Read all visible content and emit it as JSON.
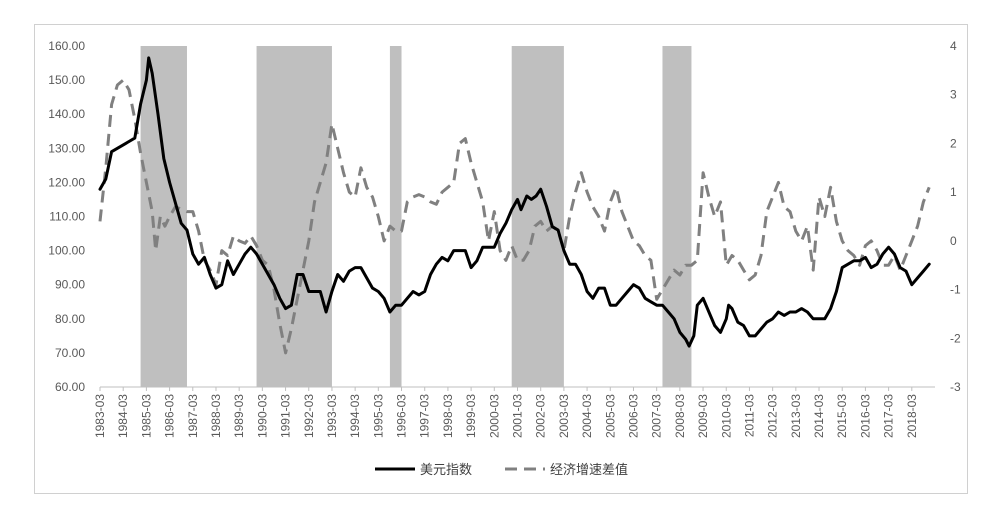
{
  "chart_data": {
    "type": "line",
    "colors": {
      "shade": "#bfbfbf",
      "usd": "#000000",
      "growth": "#808080",
      "axis_text": "#595959"
    },
    "y_left": {
      "min": 60,
      "max": 160,
      "ticks": [
        "60.00",
        "70.00",
        "80.00",
        "90.00",
        "100.00",
        "110.00",
        "120.00",
        "130.00",
        "140.00",
        "150.00",
        "160.00"
      ]
    },
    "y_right": {
      "min": -3,
      "max": 4,
      "ticks": [
        "-3",
        "-2",
        "-1",
        "0",
        "1",
        "2",
        "3",
        "4"
      ]
    },
    "x_ticks": [
      "1983-03",
      "1984-03",
      "1985-03",
      "1986-03",
      "1987-03",
      "1988-03",
      "1989-03",
      "1990-03",
      "1991-03",
      "1992-03",
      "1993-03",
      "1994-03",
      "1995-03",
      "1996-03",
      "1997-03",
      "1998-03",
      "1999-03",
      "2000-03",
      "2001-03",
      "2002-03",
      "2003-03",
      "2004-03",
      "2005-03",
      "2006-03",
      "2007-03",
      "2008-03",
      "2009-03",
      "2010-03",
      "2011-03",
      "2012-03",
      "2013-03",
      "2014-03",
      "2015-03",
      "2016-03",
      "2017-03",
      "2018-03"
    ],
    "x_range": [
      1983.0,
      2019.0
    ],
    "shaded_periods": [
      [
        1984.75,
        1986.75
      ],
      [
        1989.75,
        1993.0
      ],
      [
        1995.5,
        1996.0
      ],
      [
        2000.75,
        2003.0
      ],
      [
        2007.25,
        2008.5
      ]
    ],
    "series": [
      {
        "name": "美元指数",
        "axis": "left",
        "style": "solid",
        "points": [
          [
            1983.0,
            118
          ],
          [
            1983.25,
            121
          ],
          [
            1983.5,
            129
          ],
          [
            1983.75,
            130
          ],
          [
            1984.0,
            131
          ],
          [
            1984.25,
            132
          ],
          [
            1984.5,
            133
          ],
          [
            1984.75,
            143
          ],
          [
            1985.0,
            150
          ],
          [
            1985.1,
            156.5
          ],
          [
            1985.25,
            152
          ],
          [
            1985.5,
            140
          ],
          [
            1985.75,
            127
          ],
          [
            1986.0,
            120
          ],
          [
            1986.25,
            114
          ],
          [
            1986.5,
            108
          ],
          [
            1986.75,
            106
          ],
          [
            1987.0,
            99
          ],
          [
            1987.25,
            96
          ],
          [
            1987.5,
            98
          ],
          [
            1987.75,
            93
          ],
          [
            1988.0,
            89
          ],
          [
            1988.25,
            90
          ],
          [
            1988.5,
            97
          ],
          [
            1988.75,
            93
          ],
          [
            1989.0,
            96
          ],
          [
            1989.25,
            99
          ],
          [
            1989.5,
            101
          ],
          [
            1989.75,
            99
          ],
          [
            1990.0,
            96
          ],
          [
            1990.25,
            93
          ],
          [
            1990.5,
            90
          ],
          [
            1990.75,
            86
          ],
          [
            1991.0,
            83
          ],
          [
            1991.25,
            84
          ],
          [
            1991.5,
            93
          ],
          [
            1991.75,
            93
          ],
          [
            1992.0,
            88
          ],
          [
            1992.25,
            88
          ],
          [
            1992.5,
            88
          ],
          [
            1992.75,
            82
          ],
          [
            1993.0,
            88
          ],
          [
            1993.25,
            93
          ],
          [
            1993.5,
            91
          ],
          [
            1993.75,
            94
          ],
          [
            1994.0,
            95
          ],
          [
            1994.25,
            95
          ],
          [
            1994.5,
            92
          ],
          [
            1994.75,
            89
          ],
          [
            1995.0,
            88
          ],
          [
            1995.25,
            86
          ],
          [
            1995.5,
            82
          ],
          [
            1995.75,
            84
          ],
          [
            1996.0,
            84
          ],
          [
            1996.25,
            86
          ],
          [
            1996.5,
            88
          ],
          [
            1996.75,
            87
          ],
          [
            1997.0,
            88
          ],
          [
            1997.25,
            93
          ],
          [
            1997.5,
            96
          ],
          [
            1997.75,
            98
          ],
          [
            1998.0,
            97
          ],
          [
            1998.25,
            100
          ],
          [
            1998.5,
            100
          ],
          [
            1998.75,
            100
          ],
          [
            1999.0,
            95
          ],
          [
            1999.25,
            97
          ],
          [
            1999.5,
            101
          ],
          [
            1999.75,
            101
          ],
          [
            2000.0,
            101
          ],
          [
            2000.25,
            105
          ],
          [
            2000.5,
            108
          ],
          [
            2000.75,
            112
          ],
          [
            2001.0,
            115
          ],
          [
            2001.15,
            112
          ],
          [
            2001.4,
            116
          ],
          [
            2001.6,
            115
          ],
          [
            2001.8,
            116
          ],
          [
            2002.0,
            118
          ],
          [
            2002.25,
            113
          ],
          [
            2002.5,
            107
          ],
          [
            2002.75,
            106
          ],
          [
            2003.0,
            100
          ],
          [
            2003.25,
            96
          ],
          [
            2003.5,
            96
          ],
          [
            2003.75,
            93
          ],
          [
            2004.0,
            88
          ],
          [
            2004.25,
            86
          ],
          [
            2004.5,
            89
          ],
          [
            2004.75,
            89
          ],
          [
            2005.0,
            84
          ],
          [
            2005.25,
            84
          ],
          [
            2005.5,
            86
          ],
          [
            2005.75,
            88
          ],
          [
            2006.0,
            90
          ],
          [
            2006.25,
            89
          ],
          [
            2006.5,
            86
          ],
          [
            2006.75,
            85
          ],
          [
            2007.0,
            84
          ],
          [
            2007.25,
            84
          ],
          [
            2007.5,
            82
          ],
          [
            2007.75,
            80
          ],
          [
            2008.0,
            76
          ],
          [
            2008.25,
            74
          ],
          [
            2008.4,
            72
          ],
          [
            2008.6,
            75
          ],
          [
            2008.75,
            84
          ],
          [
            2009.0,
            86
          ],
          [
            2009.25,
            82
          ],
          [
            2009.5,
            78
          ],
          [
            2009.75,
            76
          ],
          [
            2010.0,
            80
          ],
          [
            2010.1,
            84
          ],
          [
            2010.25,
            83
          ],
          [
            2010.5,
            79
          ],
          [
            2010.75,
            78
          ],
          [
            2011.0,
            75
          ],
          [
            2011.25,
            75
          ],
          [
            2011.5,
            77
          ],
          [
            2011.75,
            79
          ],
          [
            2012.0,
            80
          ],
          [
            2012.25,
            82
          ],
          [
            2012.5,
            81
          ],
          [
            2012.75,
            82
          ],
          [
            2013.0,
            82
          ],
          [
            2013.25,
            83
          ],
          [
            2013.5,
            82
          ],
          [
            2013.75,
            80
          ],
          [
            2014.0,
            80
          ],
          [
            2014.25,
            80
          ],
          [
            2014.5,
            83
          ],
          [
            2014.75,
            88
          ],
          [
            2015.0,
            95
          ],
          [
            2015.25,
            96
          ],
          [
            2015.5,
            97
          ],
          [
            2015.75,
            97
          ],
          [
            2016.0,
            98
          ],
          [
            2016.25,
            95
          ],
          [
            2016.5,
            96
          ],
          [
            2016.75,
            99
          ],
          [
            2017.0,
            101
          ],
          [
            2017.25,
            99
          ],
          [
            2017.5,
            95
          ],
          [
            2017.75,
            94
          ],
          [
            2018.0,
            90
          ],
          [
            2018.25,
            92
          ],
          [
            2018.5,
            94
          ],
          [
            2018.75,
            96
          ]
        ]
      },
      {
        "name": "经济增速差值",
        "axis": "right",
        "style": "dashed",
        "points": [
          [
            1983.0,
            0.4
          ],
          [
            1983.25,
            1.5
          ],
          [
            1983.5,
            2.8
          ],
          [
            1983.75,
            3.2
          ],
          [
            1984.0,
            3.3
          ],
          [
            1984.25,
            3.1
          ],
          [
            1984.5,
            2.5
          ],
          [
            1984.75,
            1.8
          ],
          [
            1985.0,
            1.2
          ],
          [
            1985.25,
            0.6
          ],
          [
            1985.4,
            -0.2
          ],
          [
            1985.6,
            0.5
          ],
          [
            1985.8,
            0.3
          ],
          [
            1986.0,
            0.5
          ],
          [
            1986.25,
            0.7
          ],
          [
            1986.5,
            0.65
          ],
          [
            1986.75,
            0.6
          ],
          [
            1987.0,
            0.6
          ],
          [
            1987.25,
            0.2
          ],
          [
            1987.5,
            -0.4
          ],
          [
            1987.75,
            -0.6
          ],
          [
            1988.0,
            -0.9
          ],
          [
            1988.25,
            -0.2
          ],
          [
            1988.5,
            -0.3
          ],
          [
            1988.75,
            0.1
          ],
          [
            1989.0,
            0.0
          ],
          [
            1989.25,
            -0.05
          ],
          [
            1989.5,
            0.1
          ],
          [
            1989.75,
            -0.1
          ],
          [
            1990.0,
            -0.4
          ],
          [
            1990.25,
            -0.5
          ],
          [
            1990.5,
            -1.0
          ],
          [
            1990.75,
            -1.7
          ],
          [
            1991.0,
            -2.3
          ],
          [
            1991.25,
            -1.8
          ],
          [
            1991.5,
            -1.2
          ],
          [
            1991.75,
            -0.6
          ],
          [
            1992.0,
            0.0
          ],
          [
            1992.25,
            0.8
          ],
          [
            1992.5,
            1.2
          ],
          [
            1992.75,
            1.6
          ],
          [
            1993.0,
            2.4
          ],
          [
            1993.25,
            1.9
          ],
          [
            1993.5,
            1.4
          ],
          [
            1993.75,
            1.0
          ],
          [
            1994.0,
            0.9
          ],
          [
            1994.25,
            1.5
          ],
          [
            1994.5,
            1.1
          ],
          [
            1994.75,
            0.9
          ],
          [
            1995.0,
            0.5
          ],
          [
            1995.25,
            0.0
          ],
          [
            1995.5,
            0.3
          ],
          [
            1995.75,
            0.2
          ],
          [
            1996.0,
            0.2
          ],
          [
            1996.25,
            0.8
          ],
          [
            1996.5,
            0.9
          ],
          [
            1996.75,
            0.95
          ],
          [
            1997.0,
            0.9
          ],
          [
            1997.25,
            0.8
          ],
          [
            1997.5,
            0.75
          ],
          [
            1997.75,
            1.0
          ],
          [
            1998.0,
            1.1
          ],
          [
            1998.25,
            1.2
          ],
          [
            1998.5,
            2.0
          ],
          [
            1998.75,
            2.1
          ],
          [
            1999.0,
            1.6
          ],
          [
            1999.25,
            1.2
          ],
          [
            1999.5,
            0.8
          ],
          [
            1999.75,
            0.0
          ],
          [
            2000.0,
            0.6
          ],
          [
            2000.25,
            -0.2
          ],
          [
            2000.5,
            -0.4
          ],
          [
            2000.75,
            -0.1
          ],
          [
            2001.0,
            -0.4
          ],
          [
            2001.25,
            -0.4
          ],
          [
            2001.5,
            -0.2
          ],
          [
            2001.75,
            0.3
          ],
          [
            2002.0,
            0.4
          ],
          [
            2002.25,
            0.2
          ],
          [
            2002.5,
            0.3
          ],
          [
            2002.75,
            0.2
          ],
          [
            2003.0,
            -0.2
          ],
          [
            2003.25,
            0.5
          ],
          [
            2003.5,
            1.0
          ],
          [
            2003.75,
            1.4
          ],
          [
            2004.0,
            1.0
          ],
          [
            2004.25,
            0.7
          ],
          [
            2004.5,
            0.5
          ],
          [
            2004.75,
            0.2
          ],
          [
            2005.0,
            0.8
          ],
          [
            2005.25,
            1.1
          ],
          [
            2005.5,
            0.6
          ],
          [
            2005.75,
            0.3
          ],
          [
            2006.0,
            0.0
          ],
          [
            2006.25,
            -0.1
          ],
          [
            2006.5,
            -0.3
          ],
          [
            2006.75,
            -0.4
          ],
          [
            2007.0,
            -1.2
          ],
          [
            2007.25,
            -1.0
          ],
          [
            2007.5,
            -0.8
          ],
          [
            2007.75,
            -0.6
          ],
          [
            2008.0,
            -0.7
          ],
          [
            2008.25,
            -0.5
          ],
          [
            2008.5,
            -0.5
          ],
          [
            2008.75,
            -0.4
          ],
          [
            2009.0,
            1.4
          ],
          [
            2009.25,
            0.9
          ],
          [
            2009.5,
            0.5
          ],
          [
            2009.75,
            0.8
          ],
          [
            2010.0,
            -0.5
          ],
          [
            2010.25,
            -0.3
          ],
          [
            2010.5,
            -0.4
          ],
          [
            2010.75,
            -0.6
          ],
          [
            2011.0,
            -0.8
          ],
          [
            2011.25,
            -0.7
          ],
          [
            2011.5,
            -0.3
          ],
          [
            2011.75,
            0.6
          ],
          [
            2012.0,
            0.9
          ],
          [
            2012.25,
            1.2
          ],
          [
            2012.5,
            0.7
          ],
          [
            2012.75,
            0.6
          ],
          [
            2013.0,
            0.2
          ],
          [
            2013.25,
            0.0
          ],
          [
            2013.5,
            0.3
          ],
          [
            2013.75,
            -0.6
          ],
          [
            2014.0,
            0.9
          ],
          [
            2014.25,
            0.5
          ],
          [
            2014.5,
            1.1
          ],
          [
            2014.75,
            0.4
          ],
          [
            2015.0,
            0.0
          ],
          [
            2015.25,
            -0.2
          ],
          [
            2015.5,
            -0.3
          ],
          [
            2015.75,
            -0.5
          ],
          [
            2016.0,
            -0.1
          ],
          [
            2016.25,
            0.0
          ],
          [
            2016.5,
            -0.2
          ],
          [
            2016.75,
            -0.5
          ],
          [
            2017.0,
            -0.5
          ],
          [
            2017.25,
            -0.3
          ],
          [
            2017.5,
            -0.6
          ],
          [
            2017.75,
            -0.3
          ],
          [
            2018.0,
            0.0
          ],
          [
            2018.25,
            0.3
          ],
          [
            2018.5,
            0.8
          ],
          [
            2018.75,
            1.1
          ]
        ]
      }
    ]
  }
}
